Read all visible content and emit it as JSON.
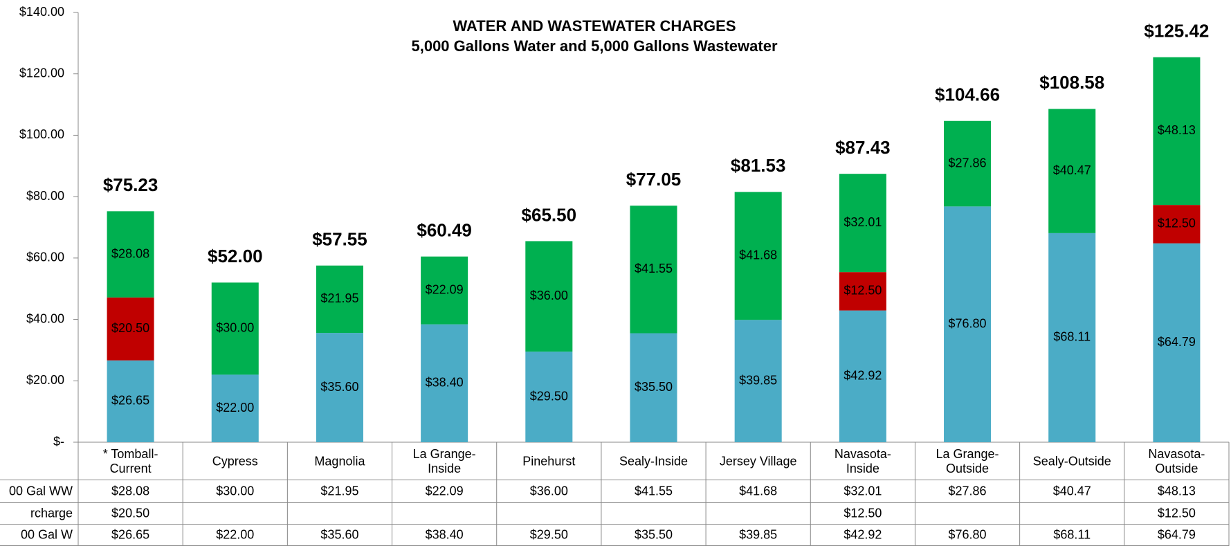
{
  "chart_data": {
    "type": "stacked_bar",
    "title": "WATER AND WASTEWATER CHARGES",
    "subtitle": "5,000 Gallons Water and 5,000 Gallons Wastewater",
    "categories": [
      "* Tomball-\nCurrent",
      "Cypress",
      "Magnolia",
      "La Grange-\nInside",
      "Pinehurst",
      "Sealy-Inside",
      "Jersey Village",
      "Navasota-\nInside",
      "La Grange-\nOutside",
      "Sealy-Outside",
      "Navasota-\nOutside"
    ],
    "series": [
      {
        "name": "00 Gal W",
        "color": "#4bacc6",
        "values": [
          26.65,
          22.0,
          35.6,
          38.4,
          29.5,
          35.5,
          39.85,
          42.92,
          76.8,
          68.11,
          64.79
        ],
        "value_labels": [
          "$26.65",
          "$22.00",
          "$35.60",
          "$38.40",
          "$29.50",
          "$35.50",
          "$39.85",
          "$42.92",
          "$76.80",
          "$68.11",
          "$64.79"
        ]
      },
      {
        "name": "rcharge",
        "color": "#c00000",
        "values": [
          20.5,
          null,
          null,
          null,
          null,
          null,
          null,
          12.5,
          null,
          null,
          12.5
        ],
        "value_labels": [
          "$20.50",
          null,
          null,
          null,
          null,
          null,
          null,
          "$12.50",
          null,
          null,
          "$12.50"
        ]
      },
      {
        "name": "00 Gal WW",
        "color": "#00b050",
        "values": [
          28.08,
          30.0,
          21.95,
          22.09,
          36.0,
          41.55,
          41.68,
          32.01,
          27.86,
          40.47,
          48.13
        ],
        "value_labels": [
          "$28.08",
          "$30.00",
          "$21.95",
          "$22.09",
          "$36.00",
          "$41.55",
          "$41.68",
          "$32.01",
          "$27.86",
          "$40.47",
          "$48.13"
        ]
      }
    ],
    "totals": [
      75.23,
      52.0,
      57.55,
      60.49,
      65.5,
      77.05,
      81.53,
      87.43,
      104.66,
      108.58,
      125.42
    ],
    "total_labels": [
      "$75.23",
      "$52.00",
      "$57.55",
      "$60.49",
      "$65.50",
      "$77.05",
      "$81.53",
      "$87.43",
      "$104.66",
      "$108.58",
      "$125.42"
    ],
    "ylim": [
      0,
      140
    ],
    "yticks": [
      {
        "value": 0,
        "label": "$-"
      },
      {
        "value": 20,
        "label": "$20.00"
      },
      {
        "value": 40,
        "label": "$40.00"
      },
      {
        "value": 60,
        "label": "$60.00"
      },
      {
        "value": 80,
        "label": "$80.00"
      },
      {
        "value": 100,
        "label": "$100.00"
      },
      {
        "value": 120,
        "label": "$120.00"
      },
      {
        "value": 140,
        "label": "$140.00"
      }
    ]
  }
}
